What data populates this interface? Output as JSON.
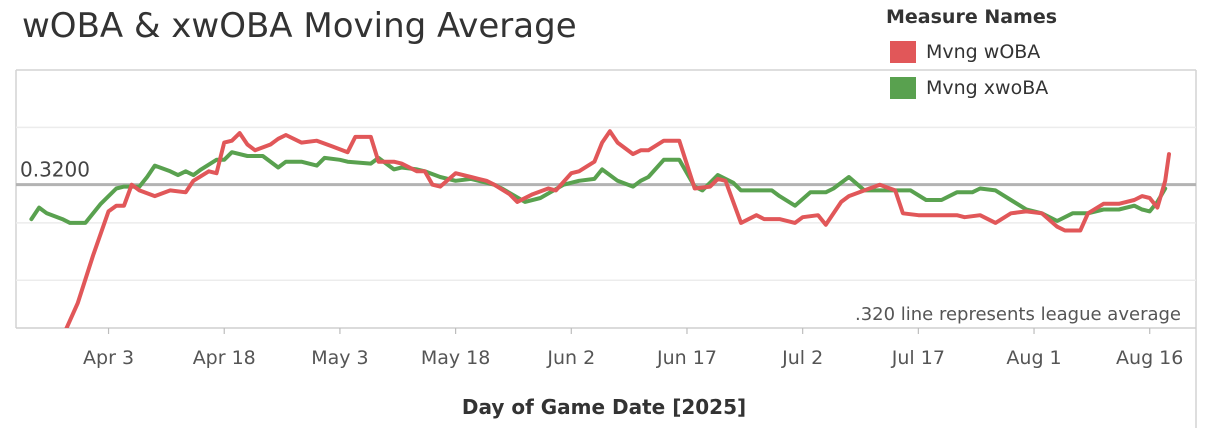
{
  "chart_data": {
    "type": "line",
    "title": "wOBA & xwOBA Moving Average",
    "xlabel": "Day of Game Date [2025]",
    "ylabel": "",
    "legend_title": "Measure Names",
    "legend_position": "top-right",
    "x_ticks": [
      "Apr 3",
      "Apr 18",
      "May 3",
      "May 18",
      "Jun 2",
      "Jun 17",
      "Jul 2",
      "Jul 17",
      "Aug 1",
      "Aug 16"
    ],
    "x_tick_days": [
      0,
      15,
      30,
      45,
      60,
      75,
      90,
      105,
      120,
      135
    ],
    "x_range": [
      -12,
      141
    ],
    "ylim": [
      0.245,
      0.38
    ],
    "gridlines": [
      0.27,
      0.3,
      0.35
    ],
    "reference_line": {
      "value": 0.32,
      "label": "0.3200"
    },
    "annotation": ".320 line represents league average",
    "series": [
      {
        "name": "Mvng wOBA",
        "color": "#e15759",
        "x": [
          -6,
          -4,
          -2,
          0,
          1,
          2,
          3,
          4,
          6,
          8,
          10,
          11,
          13,
          14,
          15,
          16,
          17,
          18,
          19,
          21,
          22,
          23,
          25,
          27,
          29,
          31,
          32,
          34,
          35,
          37,
          38,
          40,
          41,
          42,
          43,
          45,
          47,
          48,
          49,
          50,
          52,
          53,
          55,
          57,
          58,
          60,
          61,
          63,
          64,
          65,
          66,
          67,
          68,
          69,
          70,
          72,
          73,
          74,
          76,
          78,
          79,
          80,
          82,
          84,
          85,
          87,
          89,
          90,
          92,
          93,
          95,
          96,
          98,
          100,
          102,
          103,
          105,
          108,
          110,
          111,
          113,
          115,
          117,
          119,
          121,
          123,
          124,
          126,
          127,
          129,
          131,
          133,
          134,
          135,
          136
        ],
        "y": [
          0.24,
          0.258,
          0.283,
          0.306,
          0.309,
          0.309,
          0.32,
          0.317,
          0.314,
          0.317,
          0.316,
          0.322,
          0.327,
          0.326,
          0.342,
          0.343,
          0.347,
          0.341,
          0.338,
          0.341,
          0.344,
          0.346,
          0.342,
          0.343,
          0.34,
          0.337,
          0.345,
          0.345,
          0.332,
          0.332,
          0.331,
          0.327,
          0.327,
          0.32,
          0.319,
          0.326,
          0.324,
          0.323,
          0.322,
          0.32,
          0.315,
          0.311,
          0.315,
          0.318,
          0.317,
          0.326,
          0.327,
          0.332,
          0.342,
          0.348,
          0.342,
          0.339,
          0.336,
          0.338,
          0.338,
          0.343,
          0.343,
          0.343,
          0.318,
          0.319,
          0.323,
          0.322,
          0.3,
          0.304,
          0.302,
          0.302,
          0.3,
          0.303,
          0.304,
          0.299,
          0.311,
          0.314,
          0.317,
          0.32,
          0.317,
          0.305,
          0.304,
          0.304,
          0.304,
          0.303,
          0.304,
          0.3,
          0.305,
          0.306,
          0.305,
          0.298,
          0.296,
          0.296,
          0.305,
          0.31,
          0.31,
          0.312,
          0.314,
          0.313,
          0.308
        ],
        "x_extra": [
          137,
          137.5
        ],
        "y_extra": [
          0.322,
          0.336
        ]
      },
      {
        "name": "Mvng xwoBA",
        "color": "#59a14f",
        "x": [
          -10,
          -9,
          -8,
          -6,
          -5,
          -3,
          -1,
          1,
          2,
          4,
          5,
          6,
          8,
          9,
          10,
          11,
          12,
          14,
          15,
          16,
          18,
          20,
          22,
          23,
          25,
          27,
          28,
          30,
          31,
          34,
          35,
          37,
          38,
          40,
          41,
          43,
          45,
          47,
          48,
          50,
          51,
          54,
          56,
          59,
          61,
          63,
          64,
          66,
          68,
          69,
          70,
          72,
          74,
          76,
          77,
          79,
          81,
          82,
          84,
          86,
          87,
          89,
          91,
          93,
          94,
          96,
          98,
          100,
          102,
          104,
          106,
          108,
          110,
          112,
          113,
          115,
          117,
          119,
          121,
          123,
          125,
          127,
          129,
          131,
          133,
          134,
          135,
          136,
          137
        ],
        "y": [
          0.302,
          0.308,
          0.305,
          0.302,
          0.3,
          0.3,
          0.31,
          0.318,
          0.319,
          0.319,
          0.324,
          0.33,
          0.327,
          0.325,
          0.327,
          0.325,
          0.328,
          0.333,
          0.333,
          0.337,
          0.335,
          0.335,
          0.329,
          0.332,
          0.332,
          0.33,
          0.334,
          0.333,
          0.332,
          0.331,
          0.334,
          0.328,
          0.329,
          0.328,
          0.327,
          0.324,
          0.322,
          0.323,
          0.322,
          0.32,
          0.318,
          0.311,
          0.313,
          0.32,
          0.322,
          0.323,
          0.328,
          0.322,
          0.319,
          0.322,
          0.324,
          0.333,
          0.333,
          0.319,
          0.317,
          0.325,
          0.321,
          0.317,
          0.317,
          0.317,
          0.314,
          0.309,
          0.316,
          0.316,
          0.318,
          0.324,
          0.317,
          0.317,
          0.317,
          0.317,
          0.312,
          0.312,
          0.316,
          0.316,
          0.318,
          0.317,
          0.312,
          0.307,
          0.305,
          0.301,
          0.305,
          0.305,
          0.307,
          0.307,
          0.309,
          0.307,
          0.306,
          0.311,
          0.318
        ]
      }
    ]
  }
}
